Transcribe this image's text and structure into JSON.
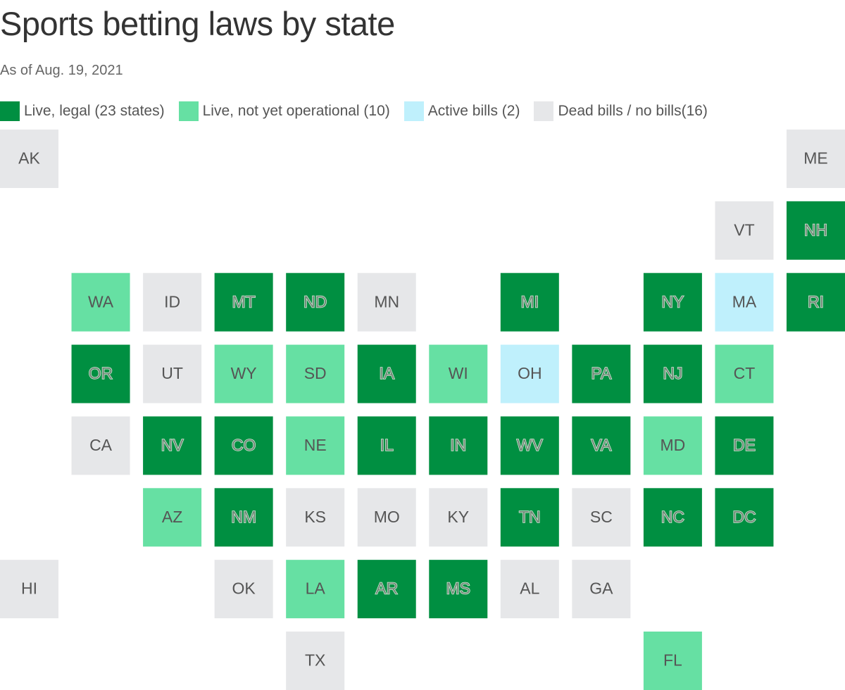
{
  "title": "Sports betting laws by state",
  "subtitle": "As of Aug. 19, 2021",
  "legend": [
    {
      "name": "Live, legal (23 states)",
      "color": "#008f41"
    },
    {
      "name": "Live, not yet operational (10)",
      "color": "#66e0a3"
    },
    {
      "name": "Active bills (2)",
      "color": "#bff0fc"
    },
    {
      "name": "Dead bills / no bills(16)",
      "color": "#e6e7e9"
    }
  ],
  "map": {
    "rows": [
      [
        {
          "label": "AK",
          "color": "#e6e7e9"
        },
        null,
        null,
        null,
        null,
        null,
        null,
        null,
        null,
        null,
        null,
        {
          "label": "ME",
          "color": "#e6e7e9"
        }
      ],
      [
        null,
        null,
        null,
        null,
        null,
        null,
        null,
        null,
        null,
        null,
        {
          "label": "VT",
          "color": "#e6e7e9"
        },
        {
          "label": "NH",
          "color": "#008f41"
        }
      ],
      [
        null,
        {
          "label": "WA",
          "color": "#66e0a3"
        },
        {
          "label": "ID",
          "color": "#e6e7e9"
        },
        {
          "label": "MT",
          "color": "#008f41"
        },
        {
          "label": "ND",
          "color": "#008f41"
        },
        {
          "label": "MN",
          "color": "#e6e7e9"
        },
        null,
        {
          "label": "MI",
          "color": "#008f41"
        },
        null,
        {
          "label": "NY",
          "color": "#008f41"
        },
        {
          "label": "MA",
          "color": "#bff0fc"
        },
        {
          "label": "RI",
          "color": "#008f41"
        }
      ],
      [
        null,
        {
          "label": "OR",
          "color": "#008f41"
        },
        {
          "label": "UT",
          "color": "#e6e7e9"
        },
        {
          "label": "WY",
          "color": "#66e0a3"
        },
        {
          "label": "SD",
          "color": "#66e0a3"
        },
        {
          "label": "IA",
          "color": "#008f41"
        },
        {
          "label": "WI",
          "color": "#66e0a3"
        },
        {
          "label": "OH",
          "color": "#bff0fc"
        },
        {
          "label": "PA",
          "color": "#008f41"
        },
        {
          "label": "NJ",
          "color": "#008f41"
        },
        {
          "label": "CT",
          "color": "#66e0a3"
        },
        null
      ],
      [
        null,
        {
          "label": "CA",
          "color": "#e6e7e9"
        },
        {
          "label": "NV",
          "color": "#008f41"
        },
        {
          "label": "CO",
          "color": "#008f41"
        },
        {
          "label": "NE",
          "color": "#66e0a3"
        },
        {
          "label": "IL",
          "color": "#008f41"
        },
        {
          "label": "IN",
          "color": "#008f41"
        },
        {
          "label": "WV",
          "color": "#008f41"
        },
        {
          "label": "VA",
          "color": "#008f41"
        },
        {
          "label": "MD",
          "color": "#66e0a3"
        },
        {
          "label": "DE",
          "color": "#008f41"
        },
        null
      ],
      [
        null,
        null,
        {
          "label": "AZ",
          "color": "#66e0a3"
        },
        {
          "label": "NM",
          "color": "#008f41"
        },
        {
          "label": "KS",
          "color": "#e6e7e9"
        },
        {
          "label": "MO",
          "color": "#e6e7e9"
        },
        {
          "label": "KY",
          "color": "#e6e7e9"
        },
        {
          "label": "TN",
          "color": "#008f41"
        },
        {
          "label": "SC",
          "color": "#e6e7e9"
        },
        {
          "label": "NC",
          "color": "#008f41"
        },
        {
          "label": "DC",
          "color": "#008f41"
        },
        null
      ],
      [
        {
          "label": "HI",
          "color": "#e6e7e9"
        },
        null,
        null,
        {
          "label": "OK",
          "color": "#e6e7e9"
        },
        {
          "label": "LA",
          "color": "#66e0a3"
        },
        {
          "label": "AR",
          "color": "#008f41"
        },
        {
          "label": "MS",
          "color": "#008f41"
        },
        {
          "label": "AL",
          "color": "#e6e7e9"
        },
        {
          "label": "GA",
          "color": "#e6e7e9"
        },
        null,
        null,
        null
      ],
      [
        null,
        null,
        null,
        null,
        {
          "label": "TX",
          "color": "#e6e7e9"
        },
        null,
        null,
        null,
        null,
        {
          "label": "FL",
          "color": "#66e0a3"
        },
        null,
        null
      ]
    ]
  }
}
